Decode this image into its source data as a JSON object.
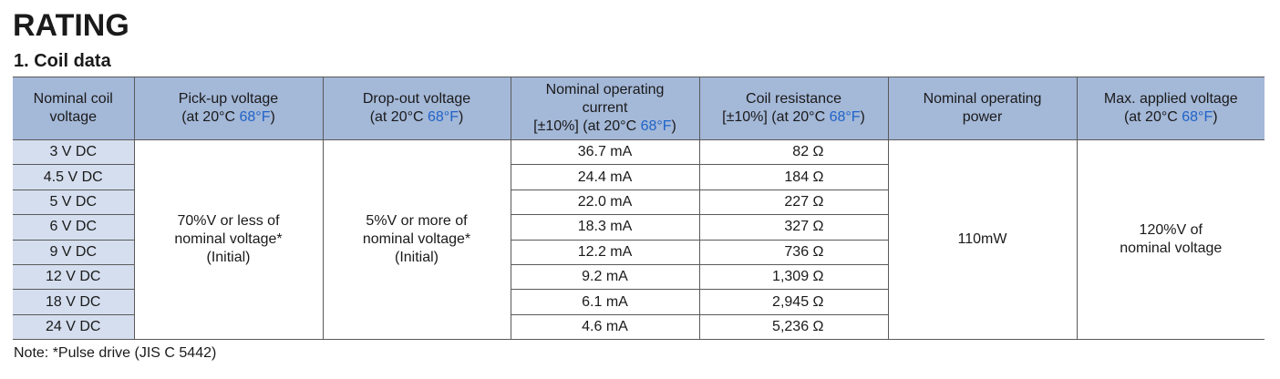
{
  "page": {
    "title": "RATING",
    "subtitle": "1. Coil data",
    "note": "Note: *Pulse drive (JIS C 5442)"
  },
  "colors": {
    "header_bg": "#a4b8d8",
    "voltage_col_bg": "#d4deee",
    "fahrenheit_text": "#1f63c8",
    "border": "#5a5a5a"
  },
  "table": {
    "headers": [
      {
        "line1": "Nominal coil",
        "line2": "voltage"
      },
      {
        "line1": "Pick-up voltage",
        "pre": "(at 20°C ",
        "f": "68°F",
        "post": ")"
      },
      {
        "line1": "Drop-out voltage",
        "pre": "(at 20°C ",
        "f": "68°F",
        "post": ")"
      },
      {
        "line1": "Nominal operating",
        "line2": "current",
        "pre": "[±10%] (at 20°C ",
        "f": "68°F",
        "post": ")"
      },
      {
        "line1": "Coil resistance",
        "pre": "[±10%] (at 20°C ",
        "f": "68°F",
        "post": ")"
      },
      {
        "line1": "Nominal operating",
        "line2": "power"
      },
      {
        "line1": "Max. applied voltage",
        "pre": "(at 20°C ",
        "f": "68°F",
        "post": ")"
      }
    ],
    "rows": [
      {
        "voltage": "3 V DC",
        "current": "36.7 mA",
        "resistance": "82 Ω"
      },
      {
        "voltage": "4.5 V DC",
        "current": "24.4 mA",
        "resistance": "184 Ω"
      },
      {
        "voltage": "5 V DC",
        "current": "22.0 mA",
        "resistance": "227 Ω"
      },
      {
        "voltage": "6 V DC",
        "current": "18.3 mA",
        "resistance": "327 Ω"
      },
      {
        "voltage": "9 V DC",
        "current": "12.2 mA",
        "resistance": "736 Ω"
      },
      {
        "voltage": "12 V DC",
        "current": "9.2 mA",
        "resistance": "1,309 Ω"
      },
      {
        "voltage": "18 V DC",
        "current": "6.1 mA",
        "resistance": "2,945 Ω"
      },
      {
        "voltage": "24 V DC",
        "current": "4.6 mA",
        "resistance": "5,236 Ω"
      }
    ],
    "pickup": {
      "line1": "70%V or less of",
      "line2": "nominal voltage*",
      "line3": "(Initial)"
    },
    "dropout": {
      "line1": "5%V or more of",
      "line2": "nominal voltage*",
      "line3": "(Initial)"
    },
    "power": "110mW",
    "max_applied": {
      "line1": "120%V of",
      "line2": "nominal voltage"
    }
  }
}
